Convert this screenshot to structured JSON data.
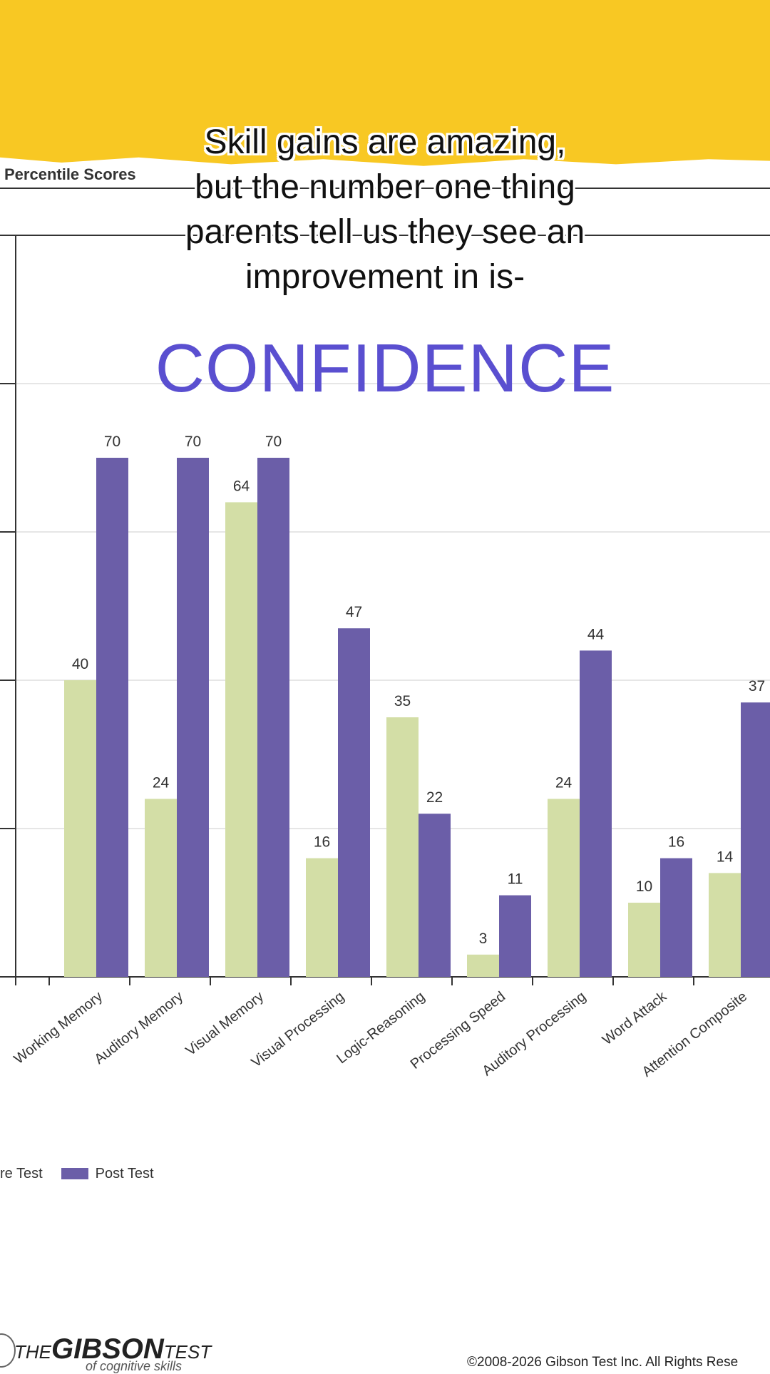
{
  "caption": {
    "lines": [
      "Skill gains are amazing,",
      "but the number one thing",
      "parents tell us they see an",
      "improvement in is-"
    ],
    "headline": "CONFIDENCE"
  },
  "colors": {
    "banner": "#f8c823",
    "pre": "#d3dea6",
    "post": "#6b5ea8",
    "headline": "#5a4fd0"
  },
  "chart_data": {
    "type": "bar",
    "title": "Percentile Scores",
    "categories": [
      "Working Memory",
      "Auditory Memory",
      "Visual Memory",
      "Visual Processing",
      "Logic-Reasoning",
      "Processing Speed",
      "Auditory Processing",
      "Word Attack",
      "Attention Composite"
    ],
    "series": [
      {
        "name": "re Test",
        "color": "#d3dea6",
        "values": [
          40,
          24,
          64,
          16,
          35,
          3,
          24,
          10,
          14
        ]
      },
      {
        "name": "Post Test",
        "color": "#6b5ea8",
        "values": [
          70,
          70,
          70,
          47,
          22,
          11,
          44,
          16,
          37
        ]
      }
    ],
    "ylim": [
      0,
      100
    ],
    "gridlines": [
      20,
      40,
      60,
      80,
      100
    ],
    "grid": true,
    "legend": "bottom-left"
  },
  "footer": {
    "logo_the": "THE",
    "logo_name": "GIBSON",
    "logo_test": "TEST",
    "logo_sub": "of cognitive skills",
    "copyright": "©2008-2026 Gibson Test Inc. All Rights Rese"
  }
}
